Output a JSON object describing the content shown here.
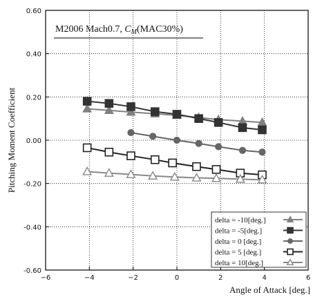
{
  "chart_data": {
    "type": "line",
    "title_parts": {
      "prefix": "M2006  Mach0.7, ",
      "symbol": "C",
      "subscript": "M",
      "suffix": "(MAC30%)"
    },
    "xlabel": "Angle of Attack [deg.]",
    "ylabel": "Pitching Moment Coefficient",
    "xlim": [
      -6,
      6
    ],
    "ylim": [
      -0.6,
      0.6
    ],
    "xticks": [
      -6,
      -4,
      -2,
      0,
      2,
      4,
      6
    ],
    "xtick_labels": [
      "−6",
      "−4",
      "−2",
      "0",
      "2",
      "4",
      "6"
    ],
    "yticks": [
      -0.6,
      -0.4,
      -0.2,
      0.0,
      0.2,
      0.4,
      0.6
    ],
    "ytick_labels": [
      "-0.60",
      "-0.40",
      "-0.20",
      "0.00",
      "0.20",
      "0.40",
      "0.60"
    ],
    "grid": "dotted",
    "legend_position": "bottom-right",
    "series": [
      {
        "name": "delta = -10[deg.]",
        "color": "#808080",
        "marker": "triangle-filled",
        "x": [
          -4.1,
          -3.1,
          -2.1,
          -1.0,
          0.0,
          1.0,
          1.9,
          3.0,
          3.9
        ],
        "y": [
          0.145,
          0.138,
          0.13,
          0.122,
          0.115,
          0.105,
          0.095,
          0.088,
          0.082
        ]
      },
      {
        "name": "delta =  -5[deg.]",
        "color": "#333333",
        "marker": "square-filled",
        "x": [
          -4.1,
          -3.1,
          -2.1,
          -1.0,
          0.0,
          1.0,
          1.9,
          3.0,
          3.9
        ],
        "y": [
          0.18,
          0.17,
          0.155,
          0.132,
          0.12,
          0.1,
          0.082,
          0.058,
          0.048
        ]
      },
      {
        "name": "delta =   0 [deg.]",
        "color": "#666666",
        "marker": "circle-filled",
        "x": [
          -2.1,
          -1.1,
          0.0,
          1.0,
          1.9,
          3.0,
          3.9
        ],
        "y": [
          0.035,
          0.018,
          0.0,
          -0.015,
          -0.03,
          -0.047,
          -0.055
        ]
      },
      {
        "name": "delta =   5 [deg.]",
        "color": "#222222",
        "marker": "square-open",
        "x": [
          -4.1,
          -3.1,
          -2.1,
          -1.0,
          -0.2,
          0.9,
          1.8,
          2.9,
          3.9
        ],
        "y": [
          -0.035,
          -0.055,
          -0.072,
          -0.09,
          -0.105,
          -0.122,
          -0.135,
          -0.152,
          -0.16
        ]
      },
      {
        "name": "delta =  10[deg.]",
        "color": "#888888",
        "marker": "triangle-open",
        "x": [
          -4.1,
          -3.1,
          -2.1,
          -1.1,
          -0.1,
          0.9,
          1.8,
          2.9,
          3.9
        ],
        "y": [
          -0.145,
          -0.152,
          -0.158,
          -0.165,
          -0.17,
          -0.174,
          -0.176,
          -0.18,
          -0.183
        ]
      }
    ]
  }
}
